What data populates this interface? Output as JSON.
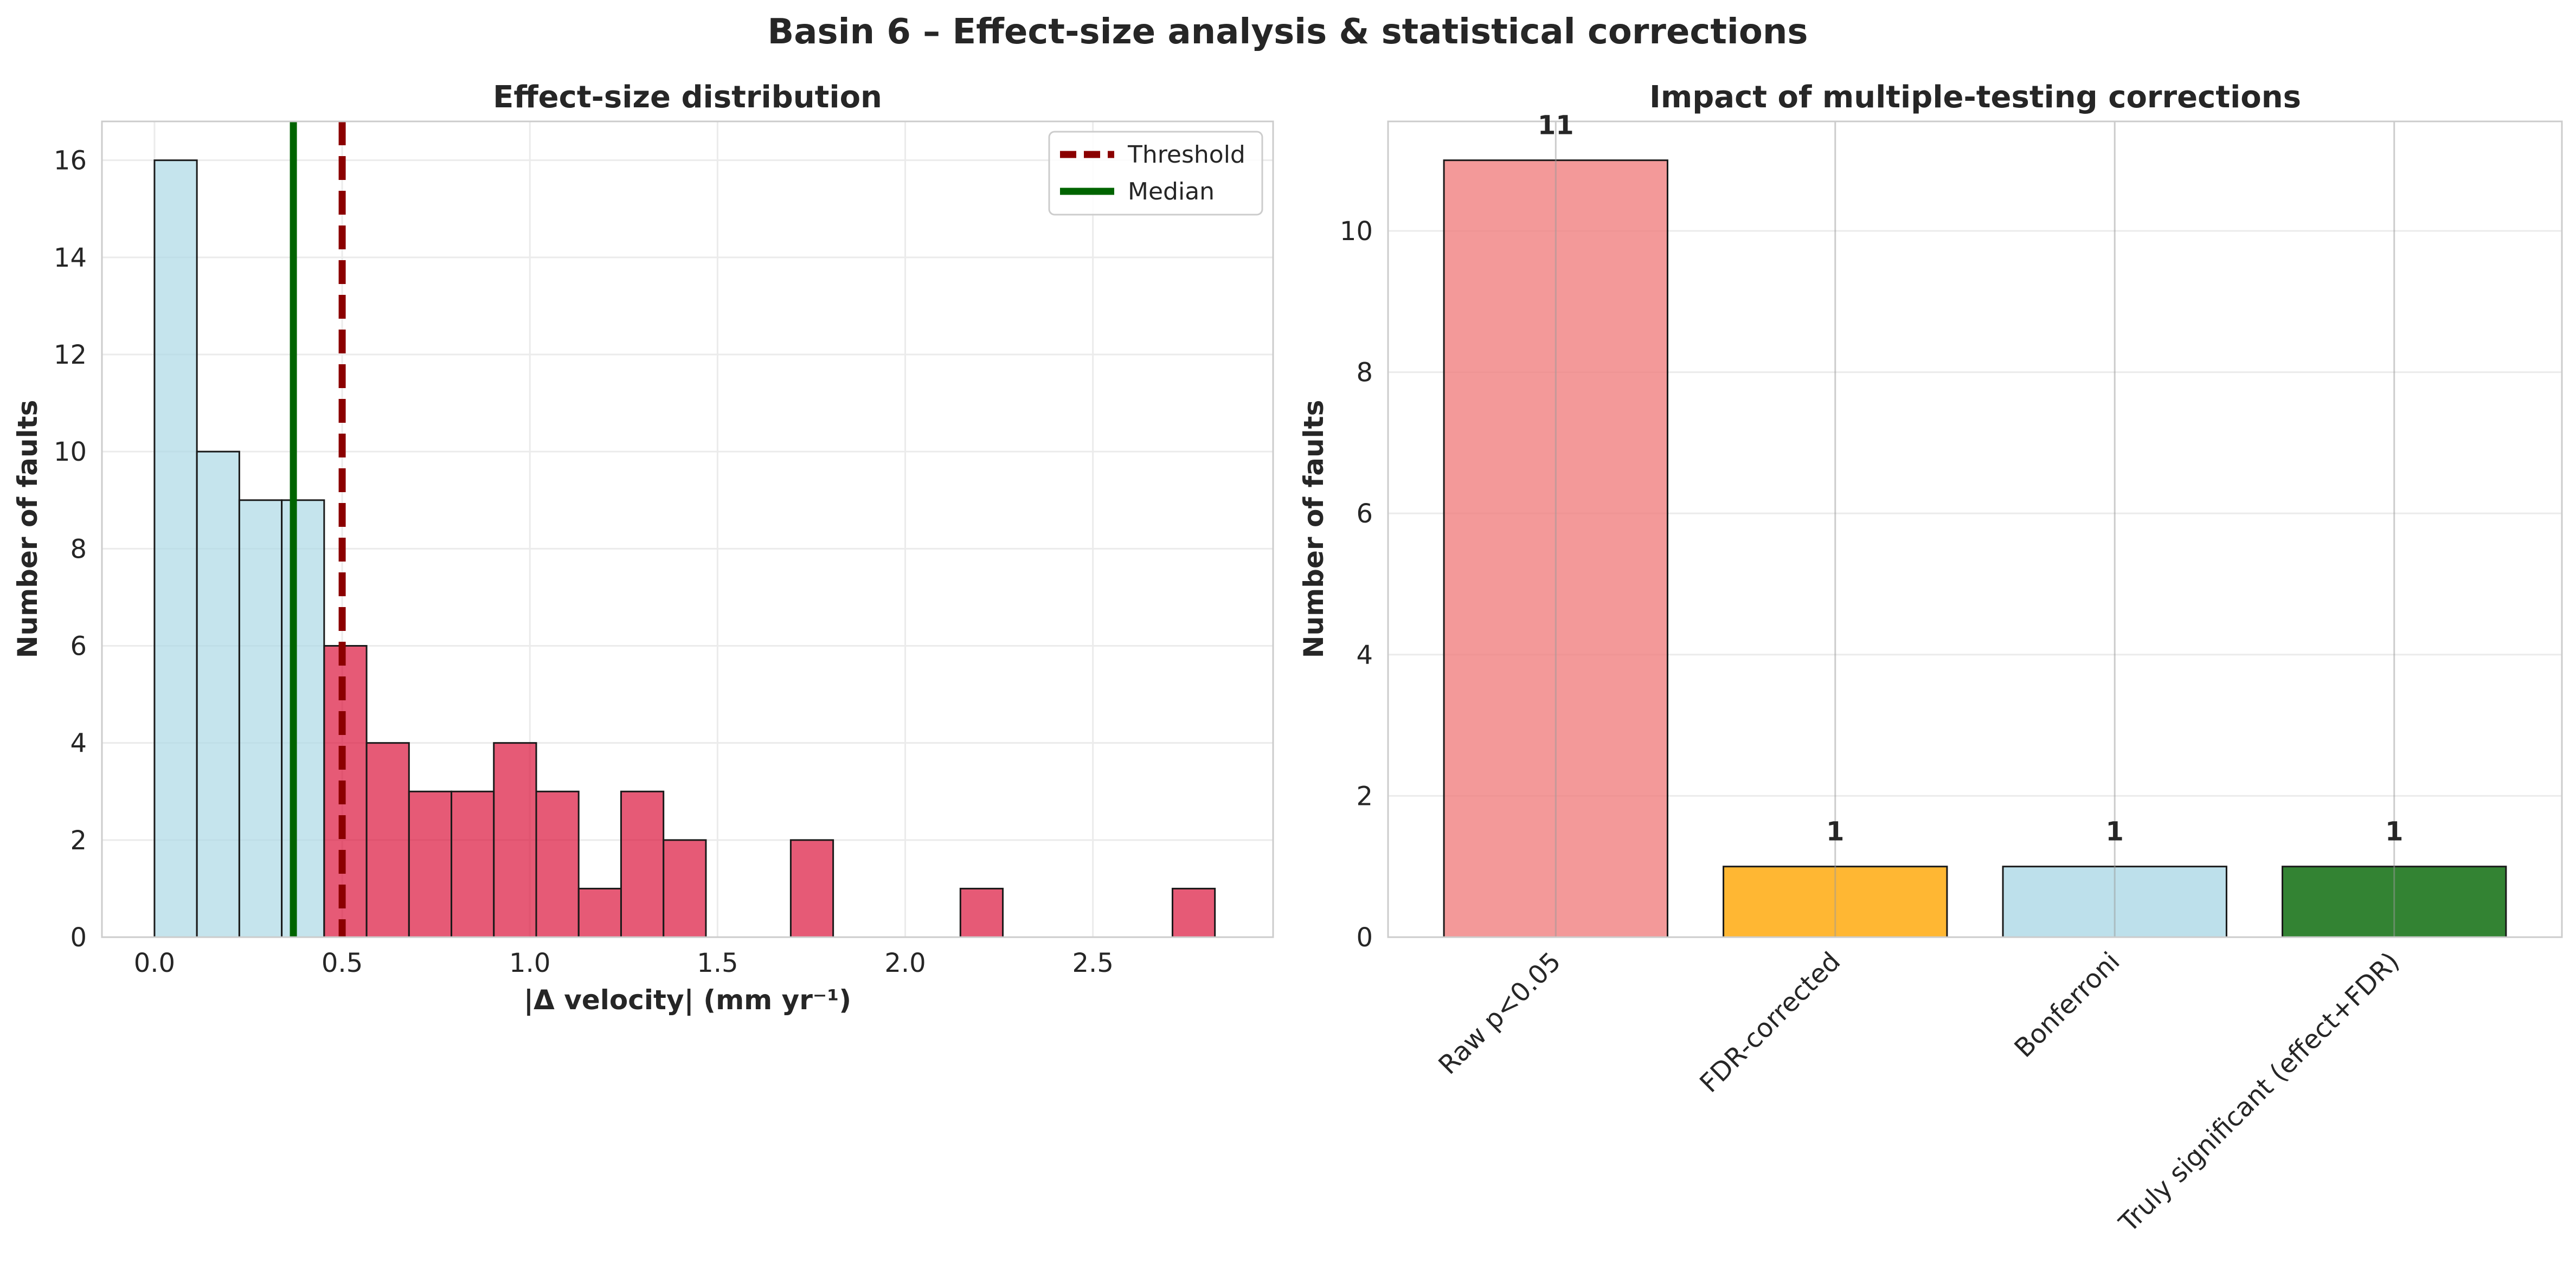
{
  "figure": {
    "suptitle": "Basin 6 – Effect-size analysis & statistical corrections"
  },
  "chart_data": [
    {
      "type": "bar",
      "subtype": "histogram",
      "title": "Effect-size distribution",
      "xlabel": "|Δ velocity| (mm yr⁻¹)",
      "ylabel": "Number of faults",
      "xlim": [
        -0.14,
        2.98
      ],
      "ylim": [
        0,
        16.8
      ],
      "xticks": [
        "0.0",
        "0.5",
        "1.0",
        "1.5",
        "2.0",
        "2.5"
      ],
      "yticks": [
        "0",
        "2",
        "4",
        "6",
        "8",
        "10",
        "12",
        "14",
        "16"
      ],
      "grid": true,
      "legend": {
        "position": "top-right",
        "entries": [
          {
            "label": "Threshold",
            "style": "dashed",
            "color": "#8b0000"
          },
          {
            "label": "Median",
            "style": "solid",
            "color": "#006400"
          }
        ]
      },
      "threshold": 0.5,
      "median": 0.37,
      "bins": [
        {
          "x0": 0.0,
          "x1": 0.113,
          "count": 16,
          "group": "below"
        },
        {
          "x0": 0.113,
          "x1": 0.226,
          "count": 10,
          "group": "below"
        },
        {
          "x0": 0.226,
          "x1": 0.339,
          "count": 9,
          "group": "below"
        },
        {
          "x0": 0.339,
          "x1": 0.452,
          "count": 9,
          "group": "below"
        },
        {
          "x0": 0.452,
          "x1": 0.565,
          "count": 6,
          "group": "above"
        },
        {
          "x0": 0.565,
          "x1": 0.678,
          "count": 4,
          "group": "above"
        },
        {
          "x0": 0.678,
          "x1": 0.791,
          "count": 3,
          "group": "above"
        },
        {
          "x0": 0.791,
          "x1": 0.904,
          "count": 3,
          "group": "above"
        },
        {
          "x0": 0.904,
          "x1": 1.017,
          "count": 4,
          "group": "above"
        },
        {
          "x0": 1.017,
          "x1": 1.13,
          "count": 3,
          "group": "above"
        },
        {
          "x0": 1.13,
          "x1": 1.243,
          "count": 1,
          "group": "above"
        },
        {
          "x0": 1.243,
          "x1": 1.356,
          "count": 3,
          "group": "above"
        },
        {
          "x0": 1.356,
          "x1": 1.469,
          "count": 2,
          "group": "above"
        },
        {
          "x0": 1.695,
          "x1": 1.808,
          "count": 2,
          "group": "above"
        },
        {
          "x0": 2.147,
          "x1": 2.26,
          "count": 1,
          "group": "above"
        },
        {
          "x0": 2.712,
          "x1": 2.825,
          "count": 1,
          "group": "above"
        }
      ],
      "colors": {
        "below": "#add8e6",
        "above": "#dc143c"
      }
    },
    {
      "type": "bar",
      "title": "Impact of multiple-testing corrections",
      "xlabel": "",
      "ylabel": "Number of faults",
      "ylim": [
        0,
        11.55
      ],
      "yticks": [
        "0",
        "2",
        "4",
        "6",
        "8",
        "10"
      ],
      "grid": true,
      "categories": [
        "Raw p<0.05",
        "FDR-corrected",
        "Bonferroni",
        "Truly significant (effect+FDR)"
      ],
      "values": [
        11,
        1,
        1,
        1
      ],
      "value_labels": [
        "11",
        "1",
        "1",
        "1"
      ],
      "colors": [
        "#f08080",
        "#ffa500",
        "#add8e6",
        "#006400"
      ]
    }
  ]
}
